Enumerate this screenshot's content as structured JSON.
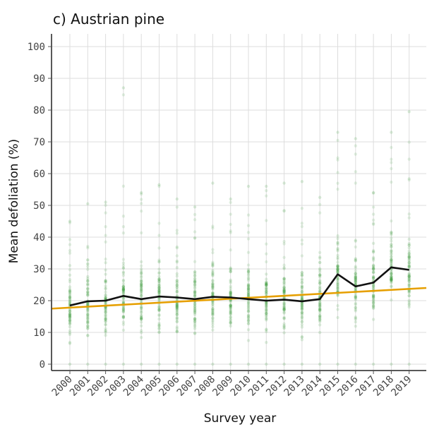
{
  "chart_data": {
    "type": "scatter",
    "title": "c) Austrian pine",
    "xlabel": "Survey year",
    "ylabel": "Mean defoliation (%)",
    "categories": [
      "2000",
      "2001",
      "2002",
      "2003",
      "2004",
      "2005",
      "2006",
      "2007",
      "2008",
      "2009",
      "2010",
      "2011",
      "2012",
      "2013",
      "2014",
      "2015",
      "2016",
      "2017",
      "2018",
      "2019"
    ],
    "y_ticks": [
      0,
      10,
      20,
      30,
      40,
      50,
      60,
      70,
      80,
      90,
      100
    ],
    "ylim": [
      -2,
      104
    ],
    "grid": true,
    "legend": "none",
    "series": [
      {
        "type": "line",
        "color": "#111111",
        "values": [
          18.5,
          19.8,
          20.0,
          21.5,
          20.5,
          21.3,
          21.0,
          20.5,
          21.2,
          21.0,
          20.5,
          20.0,
          20.3,
          19.8,
          20.5,
          28.3,
          24.5,
          25.7,
          30.5,
          29.7
        ]
      },
      {
        "type": "trend",
        "color": "#e69f00",
        "x_start": 1999.0,
        "y_start": 17.5,
        "x_end": 2020.2,
        "y_end": 24.0
      }
    ],
    "points": {
      "color": "#3a9a3a",
      "max_per_year": [
        45,
        50.5,
        51,
        87,
        54,
        56.5,
        52,
        49.5,
        57,
        52,
        56,
        56,
        57,
        57.5,
        52.5,
        73,
        71,
        54,
        73,
        79.5
      ]
    }
  }
}
